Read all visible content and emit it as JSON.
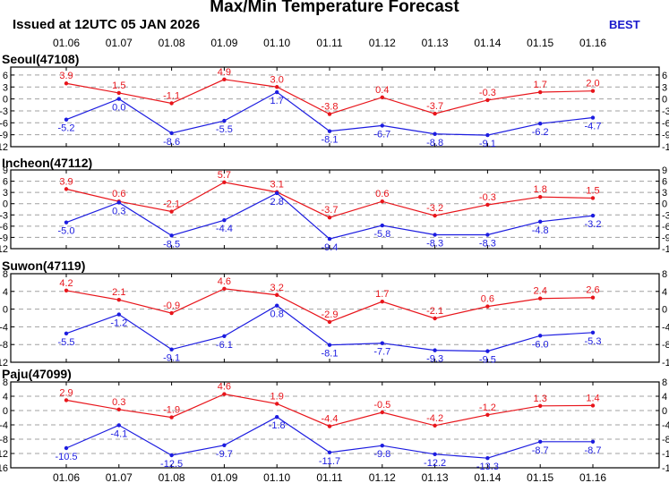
{
  "title": "Max/Min Temperature Forecast",
  "issued": "Issued at 12UTC 05 JAN 2026",
  "model": "BEST",
  "colors": {
    "max": "#e8151b",
    "min": "#1c1ce0",
    "grid": "#a0a0a0"
  },
  "chart_data": [
    {
      "type": "line",
      "title": "Seoul(47108)",
      "categories": [
        "01.06",
        "01.07",
        "01.08",
        "01.09",
        "01.10",
        "01.11",
        "01.12",
        "01.13",
        "01.14",
        "01.15",
        "01.16"
      ],
      "ylim": [
        -12,
        8
      ],
      "yticks": [
        -12,
        -9,
        -6,
        -3,
        0,
        3,
        6
      ],
      "grid": "dashed",
      "series": [
        {
          "key": "max",
          "values": [
            3.9,
            1.5,
            -1.1,
            4.9,
            3.0,
            -3.8,
            0.4,
            -3.7,
            -0.3,
            1.7,
            2.0
          ],
          "labels": [
            "3.9",
            "1.5",
            "-1.1",
            "4.9",
            "3.0",
            "-3.8",
            "0.4",
            "-3.7",
            "-0.3",
            "1.7",
            "2.0"
          ]
        },
        {
          "key": "min",
          "values": [
            -5.2,
            0.0,
            -8.6,
            -5.5,
            1.7,
            -8.1,
            -6.7,
            -8.8,
            -9.1,
            -6.2,
            -4.7
          ],
          "labels": [
            "-5.2",
            "0.0",
            "-8.6",
            "-5.5",
            "1.7",
            "-8.1",
            "-6.7",
            "-8.8",
            "-9.1",
            "-6.2",
            "-4.7"
          ]
        }
      ]
    },
    {
      "type": "line",
      "title": "Incheon(47112)",
      "categories": [
        "01.06",
        "01.07",
        "01.08",
        "01.09",
        "01.10",
        "01.11",
        "01.12",
        "01.13",
        "01.14",
        "01.15",
        "01.16"
      ],
      "ylim": [
        -12,
        9
      ],
      "yticks": [
        -12,
        -9,
        -6,
        -3,
        0,
        3,
        6,
        9
      ],
      "grid": "dashed",
      "series": [
        {
          "key": "max",
          "values": [
            3.9,
            0.6,
            -2.1,
            5.7,
            3.1,
            -3.7,
            0.6,
            -3.2,
            -0.3,
            1.8,
            1.5
          ],
          "labels": [
            "3.9",
            "0.6",
            "-2.1",
            "5.7",
            "3.1",
            "-3.7",
            "0.6",
            "-3.2",
            "-0.3",
            "1.8",
            "1.5"
          ]
        },
        {
          "key": "min",
          "values": [
            -5.0,
            0.3,
            -8.5,
            -4.4,
            2.8,
            -9.4,
            -5.8,
            -8.3,
            -8.3,
            -4.8,
            -3.2
          ],
          "labels": [
            "-5.0",
            "0.3",
            "-8.5",
            "-4.4",
            "2.8",
            "-9.4",
            "-5.8",
            "-8.3",
            "-8.3",
            "-4.8",
            "-3.2"
          ]
        }
      ]
    },
    {
      "type": "line",
      "title": "Suwon(47119)",
      "categories": [
        "01.06",
        "01.07",
        "01.08",
        "01.09",
        "01.10",
        "01.11",
        "01.12",
        "01.13",
        "01.14",
        "01.15",
        "01.16"
      ],
      "ylim": [
        -12,
        8
      ],
      "yticks": [
        -12,
        -8,
        -4,
        0,
        4,
        8
      ],
      "grid": "dashed",
      "series": [
        {
          "key": "max",
          "values": [
            4.2,
            2.1,
            -0.9,
            4.6,
            3.2,
            -2.9,
            1.7,
            -2.1,
            0.6,
            2.4,
            2.6
          ],
          "labels": [
            "4.2",
            "2.1",
            "-0.9",
            "4.6",
            "3.2",
            "-2.9",
            "1.7",
            "-2.1",
            "0.6",
            "2.4",
            "2.6"
          ]
        },
        {
          "key": "min",
          "values": [
            -5.5,
            -1.2,
            -9.1,
            -6.1,
            0.8,
            -8.1,
            -7.7,
            -9.3,
            -9.5,
            -6.0,
            -5.3
          ],
          "labels": [
            "-5.5",
            "-1.2",
            "-9.1",
            "-6.1",
            "0.8",
            "-8.1",
            "-7.7",
            "-9.3",
            "-9.5",
            "-6.0",
            "-5.3"
          ]
        }
      ]
    },
    {
      "type": "line",
      "title": "Paju(47099)",
      "categories": [
        "01.06",
        "01.07",
        "01.08",
        "01.09",
        "01.10",
        "01.11",
        "01.12",
        "01.13",
        "01.14",
        "01.15",
        "01.16"
      ],
      "ylim": [
        -16,
        8
      ],
      "yticks": [
        -16,
        -12,
        -8,
        -4,
        0,
        4,
        8
      ],
      "grid": "dashed",
      "series": [
        {
          "key": "max",
          "values": [
            2.9,
            0.3,
            -1.9,
            4.6,
            1.9,
            -4.4,
            -0.5,
            -4.2,
            -1.2,
            1.3,
            1.4
          ],
          "labels": [
            "2.9",
            "0.3",
            "-1.9",
            "4.6",
            "1.9",
            "-4.4",
            "-0.5",
            "-4.2",
            "-1.2",
            "1.3",
            "1.4"
          ]
        },
        {
          "key": "min",
          "values": [
            -10.5,
            -4.1,
            -12.5,
            -9.7,
            -1.8,
            -11.7,
            -9.8,
            -12.2,
            -13.3,
            -8.7,
            -8.7
          ],
          "labels": [
            "-10.5",
            "-4.1",
            "-12.5",
            "-9.7",
            "-1.8",
            "-11.7",
            "-9.8",
            "-12.2",
            "-13.3",
            "-8.7",
            "-8.7"
          ]
        }
      ]
    }
  ]
}
